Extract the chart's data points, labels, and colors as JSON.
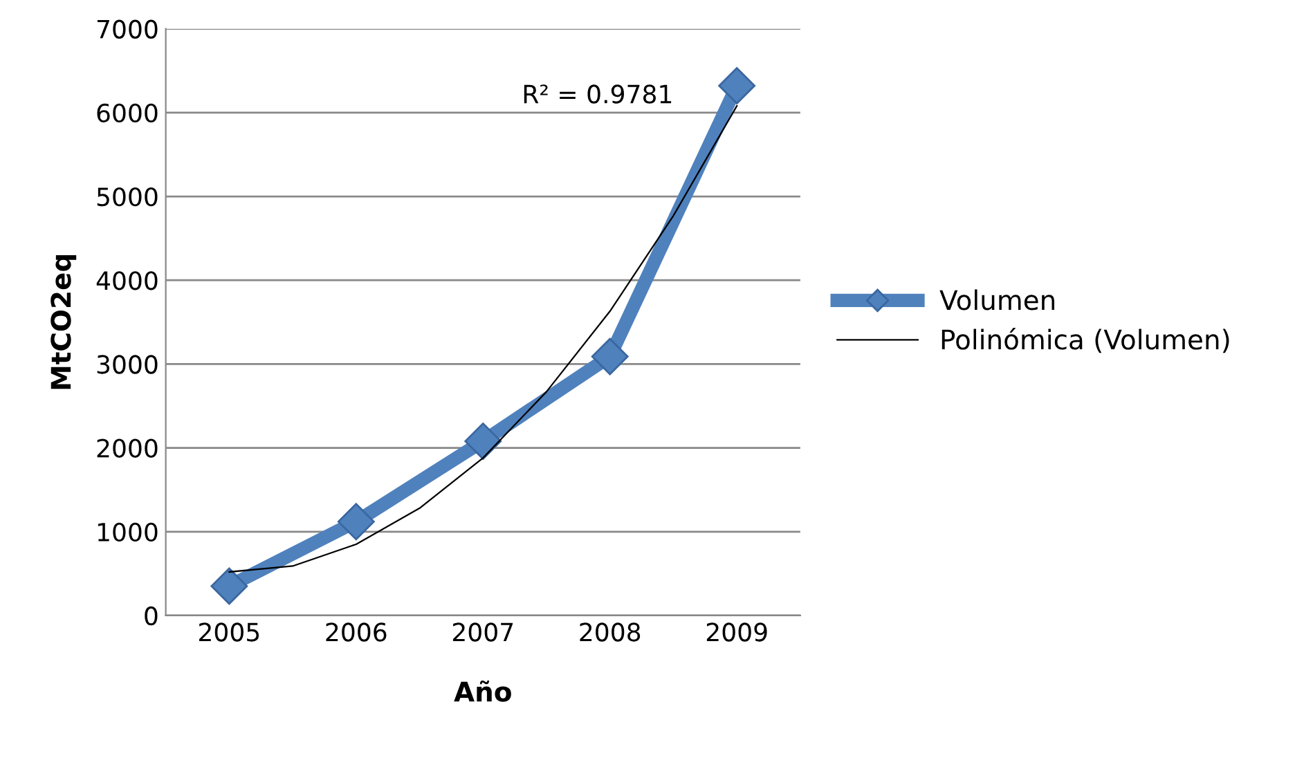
{
  "chart_data": {
    "type": "line",
    "xlabel": "Año",
    "ylabel": "MtCO2eq",
    "x": [
      2005,
      2006,
      2007,
      2008,
      2009
    ],
    "xlim": [
      2004.5,
      2009.5
    ],
    "xticks": [
      2005,
      2006,
      2007,
      2008,
      2009
    ],
    "ylim": [
      0,
      7000
    ],
    "yticks": [
      0,
      1000,
      2000,
      3000,
      4000,
      5000,
      6000,
      7000
    ],
    "grid": "y",
    "legend": "right",
    "series": [
      {
        "name": "Volumen",
        "color": "#4f81bd",
        "values": [
          350,
          1120,
          2080,
          3090,
          6320
        ],
        "marker": "diamond",
        "line_style": "solid"
      },
      {
        "name": "Polinómica (Volumen)",
        "type": "line",
        "color": "#000000",
        "x": [
          2005,
          2005.5,
          2006,
          2006.5,
          2007,
          2007.5,
          2008,
          2008.5,
          2009
        ],
        "values": [
          520,
          590,
          850,
          1280,
          1880,
          2670,
          3630,
          4770,
          6080
        ],
        "marker": "none",
        "line_style": "solid"
      }
    ],
    "annotations": [
      "R² = 0.9781"
    ]
  }
}
